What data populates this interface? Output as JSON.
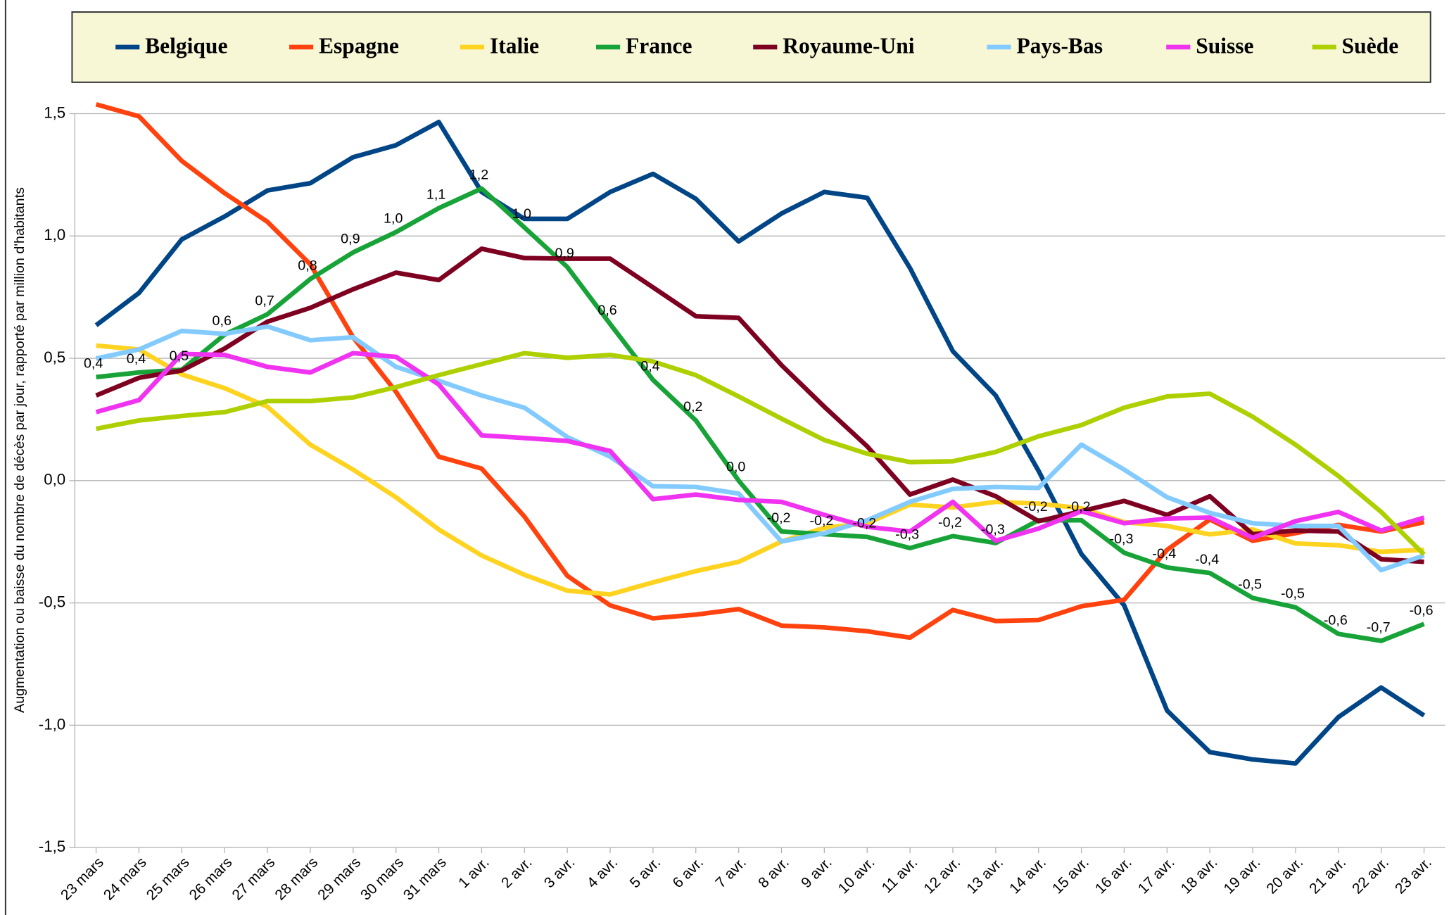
{
  "chart_data": {
    "type": "line",
    "y_label": "Augmentation ou baisse du nombre de décès par jour, rapporté par million d'habitants",
    "categories": [
      "23 mars",
      "24 mars",
      "25 mars",
      "26 mars",
      "27 mars",
      "28 mars",
      "29 mars",
      "30 mars",
      "31 mars",
      "1 avr.",
      "2 avr.",
      "3 avr.",
      "4 avr.",
      "5 avr.",
      "6 avr.",
      "7 avr.",
      "8 avr.",
      "9 avr.",
      "10 avr.",
      "11 avr.",
      "12 avr.",
      "13 avr.",
      "14 avr.",
      "15 avr.",
      "16 avr.",
      "17 avr.",
      "18 avr.",
      "19 avr.",
      "20 avr.",
      "21 avr.",
      "22 avr.",
      "23 avr."
    ],
    "ylim": [
      -1.5,
      1.5
    ],
    "yticks": [
      {
        "value": -1.5,
        "label": "-1,5"
      },
      {
        "value": -1,
        "label": "-1,0"
      },
      {
        "value": -0.5,
        "label": "-0,5"
      },
      {
        "value": 0,
        "label": "0,0"
      },
      {
        "value": 0.5,
        "label": "0,5"
      },
      {
        "value": 1,
        "label": "1,0"
      },
      {
        "value": 1.5,
        "label": "1,5"
      }
    ],
    "grid": true,
    "legend": "top",
    "series": [
      {
        "name": "Belgique",
        "color": "#004586",
        "values": [
          0.635,
          0.767,
          0.986,
          1.08,
          1.186,
          1.216,
          1.322,
          1.371,
          1.466,
          1.18,
          1.07,
          1.07,
          1.18,
          1.254,
          1.152,
          0.978,
          1.092,
          1.18,
          1.156,
          0.869,
          0.529,
          0.348,
          0.04,
          -0.3,
          -0.51,
          -0.94,
          -1.11,
          -1.14,
          -1.156,
          -0.967,
          -0.846,
          -0.96
        ]
      },
      {
        "name": "Espagne",
        "color": "#ff420e",
        "values": [
          1.538,
          1.489,
          1.307,
          1.175,
          1.058,
          0.884,
          0.586,
          0.363,
          0.098,
          0.049,
          -0.147,
          -0.389,
          -0.51,
          -0.563,
          -0.548,
          -0.525,
          -0.593,
          -0.6,
          -0.616,
          -0.642,
          -0.529,
          -0.574,
          -0.57,
          -0.514,
          -0.487,
          -0.283,
          -0.159,
          -0.246,
          -0.215,
          -0.181,
          -0.208,
          -0.17
        ]
      },
      {
        "name": "Italie",
        "color": "#ffd320",
        "values": [
          0.552,
          0.536,
          0.434,
          0.378,
          0.302,
          0.147,
          0.045,
          -0.068,
          -0.2,
          -0.306,
          -0.385,
          -0.45,
          -0.465,
          -0.416,
          -0.37,
          -0.332,
          -0.249,
          -0.193,
          -0.174,
          -0.098,
          -0.11,
          -0.087,
          -0.094,
          -0.113,
          -0.17,
          -0.185,
          -0.22,
          -0.2,
          -0.257,
          -0.264,
          -0.291,
          -0.283
        ]
      },
      {
        "name": "France",
        "color": "#18a338",
        "values": [
          0.423,
          0.442,
          0.453,
          0.597,
          0.68,
          0.824,
          0.933,
          1.016,
          1.114,
          1.194,
          1.035,
          0.873,
          0.64,
          0.412,
          0.246,
          0,
          -0.208,
          -0.219,
          -0.23,
          -0.276,
          -0.227,
          -0.255,
          -0.162,
          -0.162,
          -0.295,
          -0.355,
          -0.378,
          -0.48,
          -0.518,
          -0.627,
          -0.655,
          -0.586
        ],
        "value_labels": [
          "0,4",
          "0,4",
          "0,5",
          "0,6",
          "0,7",
          "0,8",
          "0,9",
          "1,0",
          "1,1",
          "1,2",
          "1,0",
          "0,9",
          "0,6",
          "0,4",
          "0,2",
          "0,0",
          "-0,2",
          "-0,2",
          "-0,2",
          "-0,3",
          "-0,2",
          "-0,3",
          "-0,2",
          "-0,2",
          "-0,3",
          "-0,4",
          "-0,4",
          "-0,5",
          "-0,5",
          "-0,6",
          "-0,7",
          "-0,6"
        ]
      },
      {
        "name": "Royaume-Uni",
        "color": "#7e0021",
        "values": [
          0.348,
          0.42,
          0.45,
          0.54,
          0.65,
          0.706,
          0.782,
          0.85,
          0.82,
          0.948,
          0.91,
          0.907,
          0.907,
          0.79,
          0.672,
          0.665,
          0.472,
          0.302,
          0.14,
          -0.057,
          0.004,
          -0.064,
          -0.166,
          -0.125,
          -0.083,
          -0.14,
          -0.064,
          -0.219,
          -0.204,
          -0.208,
          -0.321,
          -0.332
        ]
      },
      {
        "name": "Pays-Bas",
        "color": "#83caff",
        "values": [
          0.499,
          0.536,
          0.612,
          0.6,
          0.63,
          0.574,
          0.586,
          0.465,
          0.408,
          0.348,
          0.298,
          0.178,
          0.098,
          -0.023,
          -0.026,
          -0.053,
          -0.249,
          -0.215,
          -0.162,
          -0.087,
          -0.034,
          -0.026,
          -0.03,
          0.147,
          0.045,
          -0.068,
          -0.132,
          -0.174,
          -0.185,
          -0.185,
          -0.366,
          -0.306
        ]
      },
      {
        "name": "Suisse",
        "color": "#f033f0",
        "values": [
          0.28,
          0.329,
          0.518,
          0.514,
          0.465,
          0.442,
          0.521,
          0.506,
          0.393,
          0.185,
          0.174,
          0.162,
          0.121,
          -0.076,
          -0.057,
          -0.079,
          -0.087,
          -0.14,
          -0.189,
          -0.208,
          -0.087,
          -0.246,
          -0.196,
          -0.125,
          -0.174,
          -0.155,
          -0.151,
          -0.234,
          -0.166,
          -0.128,
          -0.204,
          -0.151
        ]
      },
      {
        "name": "Suède",
        "color": "#aecf00",
        "values": [
          0.212,
          0.246,
          0.264,
          0.28,
          0.325,
          0.325,
          0.34,
          0.382,
          0.431,
          0.476,
          0.521,
          0.502,
          0.514,
          0.487,
          0.431,
          0.344,
          0.253,
          0.166,
          0.11,
          0.076,
          0.079,
          0.117,
          0.181,
          0.227,
          0.298,
          0.344,
          0.355,
          0.261,
          0.147,
          0.019,
          -0.128,
          -0.302
        ]
      }
    ]
  }
}
